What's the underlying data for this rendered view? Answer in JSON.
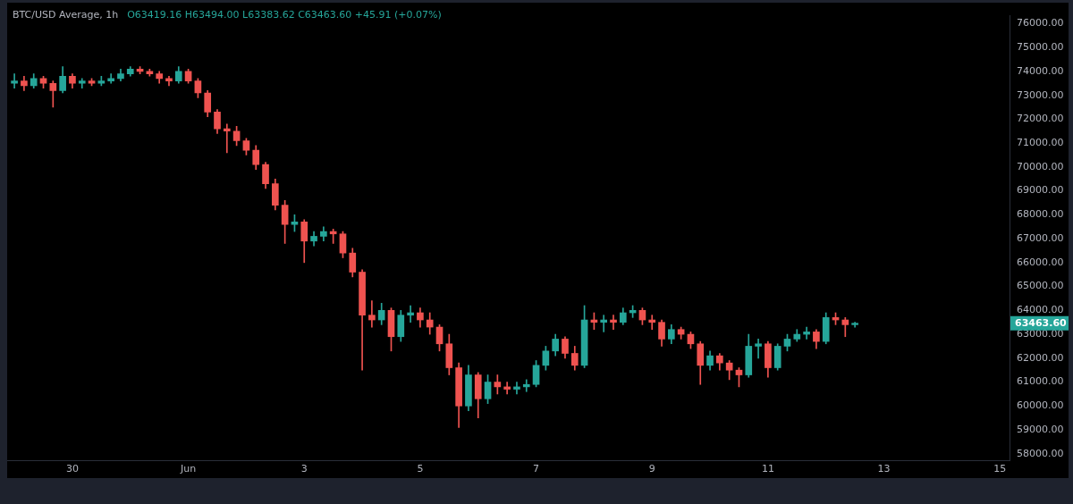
{
  "chart_data": {
    "type": "candlestick",
    "title": "BTC/USD Average, 1h",
    "subtitle": "O63419.16 H63494.00 L63383.62 C63463.60 +45.91 (+0.07%)",
    "x": [
      "--05-29T00:00",
      "--05-29T04:00",
      "--05-29T08:00",
      "--05-29T12:00",
      "--05-29T16:00",
      "--05-29T20:00",
      "--05-30T00:00",
      "--05-30T04:00",
      "--05-30T08:00",
      "--05-30T12:00",
      "--05-30T16:00",
      "--05-30T20:00",
      "--05-31T00:00",
      "--05-31T04:00",
      "--05-31T08:00",
      "--05-31T12:00",
      "--05-31T16:00",
      "--05-31T20:00",
      "--06-01T00:00",
      "--06-01T04:00",
      "--06-01T08:00",
      "--06-01T12:00",
      "--06-01T16:00",
      "--06-01T20:00",
      "--06-02T00:00",
      "--06-02T04:00",
      "--06-02T08:00",
      "--06-02T12:00",
      "--06-02T16:00",
      "--06-02T20:00",
      "--06-03T00:00",
      "--06-03T04:00",
      "--06-03T08:00",
      "--06-03T12:00",
      "--06-03T16:00",
      "--06-03T20:00",
      "--06-04T00:00",
      "--06-04T04:00",
      "--06-04T08:00",
      "--06-04T12:00",
      "--06-04T16:00",
      "--06-04T20:00",
      "--06-05T00:00",
      "--06-05T04:00",
      "--06-05T08:00",
      "--06-05T12:00",
      "--06-05T16:00",
      "--06-05T20:00",
      "--06-06T00:00",
      "--06-06T04:00",
      "--06-06T08:00",
      "--06-06T12:00",
      "--06-06T16:00",
      "--06-06T20:00",
      "--06-07T00:00",
      "--06-07T04:00",
      "--06-07T08:00",
      "--06-07T12:00",
      "--06-07T16:00",
      "--06-07T20:00",
      "--06-08T00:00",
      "--06-08T04:00",
      "--06-08T08:00",
      "--06-08T12:00",
      "--06-08T16:00",
      "--06-08T20:00",
      "--06-09T00:00",
      "--06-09T04:00",
      "--06-09T08:00",
      "--06-09T12:00",
      "--06-09T16:00",
      "--06-09T20:00",
      "--06-10T00:00",
      "--06-10T04:00",
      "--06-10T08:00",
      "--06-10T12:00",
      "--06-10T16:00",
      "--06-10T20:00",
      "--06-11T00:00",
      "--06-11T04:00",
      "--06-11T08:00",
      "--06-11T12:00",
      "--06-11T16:00",
      "--06-11T20:00",
      "--06-12T00:00",
      "--06-12T04:00",
      "--06-12T08:00",
      "--06-12T12:00"
    ],
    "ohlc": [
      [
        73500,
        73900,
        73300,
        73600
      ],
      [
        73600,
        73800,
        73200,
        73400
      ],
      [
        73400,
        73900,
        73300,
        73700
      ],
      [
        73700,
        73800,
        73300,
        73500
      ],
      [
        73500,
        73600,
        72500,
        73200
      ],
      [
        73200,
        74200,
        73100,
        73800
      ],
      [
        73800,
        73900,
        73300,
        73500
      ],
      [
        73500,
        73700,
        73300,
        73600
      ],
      [
        73600,
        73700,
        73400,
        73500
      ],
      [
        73500,
        73800,
        73400,
        73600
      ],
      [
        73600,
        73900,
        73500,
        73700
      ],
      [
        73700,
        74100,
        73600,
        73900
      ],
      [
        73900,
        74200,
        73800,
        74100
      ],
      [
        74100,
        74200,
        73900,
        74000
      ],
      [
        74000,
        74100,
        73800,
        73900
      ],
      [
        73900,
        74000,
        73500,
        73700
      ],
      [
        73700,
        73800,
        73400,
        73600
      ],
      [
        73600,
        74200,
        73500,
        74000
      ],
      [
        74000,
        74100,
        73500,
        73600
      ],
      [
        73600,
        73700,
        72900,
        73100
      ],
      [
        73100,
        73200,
        72100,
        72300
      ],
      [
        72300,
        72400,
        71400,
        71600
      ],
      [
        71600,
        71800,
        70600,
        71500
      ],
      [
        71500,
        71700,
        70900,
        71100
      ],
      [
        71100,
        71200,
        70500,
        70700
      ],
      [
        70700,
        70900,
        69900,
        70100
      ],
      [
        70100,
        70200,
        69100,
        69300
      ],
      [
        69300,
        69500,
        68200,
        68400
      ],
      [
        68400,
        68600,
        66800,
        67600
      ],
      [
        67600,
        68000,
        67300,
        67700
      ],
      [
        67700,
        67800,
        66000,
        66900
      ],
      [
        66900,
        67300,
        66700,
        67100
      ],
      [
        67100,
        67500,
        66900,
        67300
      ],
      [
        67300,
        67400,
        66800,
        67200
      ],
      [
        67200,
        67300,
        66200,
        66400
      ],
      [
        66400,
        66600,
        65400,
        65600
      ],
      [
        65600,
        65700,
        61500,
        63800
      ],
      [
        63800,
        64400,
        63300,
        63600
      ],
      [
        63600,
        64300,
        63400,
        64000
      ],
      [
        64000,
        64100,
        62300,
        62900
      ],
      [
        62900,
        64000,
        62700,
        63800
      ],
      [
        63800,
        64200,
        63500,
        63900
      ],
      [
        63900,
        64100,
        63300,
        63600
      ],
      [
        63600,
        63900,
        63000,
        63300
      ],
      [
        63300,
        63400,
        62300,
        62600
      ],
      [
        62600,
        63000,
        61300,
        61600
      ],
      [
        61600,
        61800,
        59100,
        60000
      ],
      [
        60000,
        61700,
        59800,
        61300
      ],
      [
        61300,
        61400,
        59500,
        60300
      ],
      [
        60300,
        61300,
        60100,
        61000
      ],
      [
        61000,
        61300,
        60500,
        60800
      ],
      [
        60800,
        61000,
        60500,
        60700
      ],
      [
        60700,
        61000,
        60500,
        60800
      ],
      [
        60800,
        61100,
        60600,
        60900
      ],
      [
        60900,
        61900,
        60800,
        61700
      ],
      [
        61700,
        62500,
        61500,
        62300
      ],
      [
        62300,
        63000,
        62100,
        62800
      ],
      [
        62800,
        62900,
        62000,
        62200
      ],
      [
        62200,
        62500,
        61500,
        61700
      ],
      [
        61700,
        64200,
        61600,
        63600
      ],
      [
        63600,
        63900,
        63200,
        63500
      ],
      [
        63500,
        63800,
        63100,
        63600
      ],
      [
        63600,
        63800,
        63200,
        63500
      ],
      [
        63500,
        64100,
        63400,
        63900
      ],
      [
        63900,
        64200,
        63700,
        64000
      ],
      [
        64000,
        64100,
        63400,
        63600
      ],
      [
        63600,
        63800,
        63200,
        63500
      ],
      [
        63500,
        63600,
        62500,
        62800
      ],
      [
        62800,
        63400,
        62600,
        63200
      ],
      [
        63200,
        63300,
        62800,
        63000
      ],
      [
        63000,
        63100,
        62400,
        62600
      ],
      [
        62600,
        62700,
        60900,
        61700
      ],
      [
        61700,
        62300,
        61500,
        62100
      ],
      [
        62100,
        62200,
        61500,
        61800
      ],
      [
        61800,
        61900,
        61100,
        61500
      ],
      [
        61500,
        61600,
        60800,
        61300
      ],
      [
        61300,
        63000,
        61200,
        62500
      ],
      [
        62500,
        62800,
        62000,
        62600
      ],
      [
        62600,
        62700,
        61200,
        61600
      ],
      [
        61600,
        62600,
        61500,
        62500
      ],
      [
        62500,
        63000,
        62300,
        62800
      ],
      [
        62800,
        63200,
        62700,
        63000
      ],
      [
        63000,
        63300,
        62800,
        63100
      ],
      [
        63100,
        63200,
        62400,
        62700
      ],
      [
        62700,
        63900,
        62600,
        63700
      ],
      [
        63700,
        63900,
        63400,
        63600
      ],
      [
        63600,
        63700,
        62900,
        63400
      ],
      [
        63400,
        63500,
        63300,
        63463.6
      ]
    ],
    "xlim": [
      "--05-28T21:00",
      "--06-15T04:00"
    ],
    "xticks": [
      {
        "value": "--05-30",
        "label": "30"
      },
      {
        "value": "--06-01",
        "label": "Jun"
      },
      {
        "value": "--06-03",
        "label": "3"
      },
      {
        "value": "--06-05",
        "label": "5"
      },
      {
        "value": "--06-07",
        "label": "7"
      },
      {
        "value": "--06-09",
        "label": "9"
      },
      {
        "value": "--06-11",
        "label": "11"
      },
      {
        "value": "--06-13",
        "label": "13"
      },
      {
        "value": "--06-15",
        "label": "15"
      }
    ],
    "ylim": [
      57700,
      76330
    ],
    "yticks": [
      {
        "value": 58000,
        "label": "58000.00"
      },
      {
        "value": 59000,
        "label": "59000.00"
      },
      {
        "value": 60000,
        "label": "60000.00"
      },
      {
        "value": 61000,
        "label": "61000.00"
      },
      {
        "value": 62000,
        "label": "62000.00"
      },
      {
        "value": 63000,
        "label": "63000.00"
      },
      {
        "value": 64000,
        "label": "64000.00"
      },
      {
        "value": 65000,
        "label": "65000.00"
      },
      {
        "value": 66000,
        "label": "66000.00"
      },
      {
        "value": 67000,
        "label": "67000.00"
      },
      {
        "value": 68000,
        "label": "68000.00"
      },
      {
        "value": 69000,
        "label": "69000.00"
      },
      {
        "value": 70000,
        "label": "70000.00"
      },
      {
        "value": 71000,
        "label": "71000.00"
      },
      {
        "value": 72000,
        "label": "72000.00"
      },
      {
        "value": 73000,
        "label": "73000.00"
      },
      {
        "value": 74000,
        "label": "74000.00"
      },
      {
        "value": 75000,
        "label": "75000.00"
      },
      {
        "value": 76000,
        "label": "76000.00"
      }
    ],
    "annotations": [
      "63463.60"
    ],
    "grid": false,
    "legend": false
  }
}
